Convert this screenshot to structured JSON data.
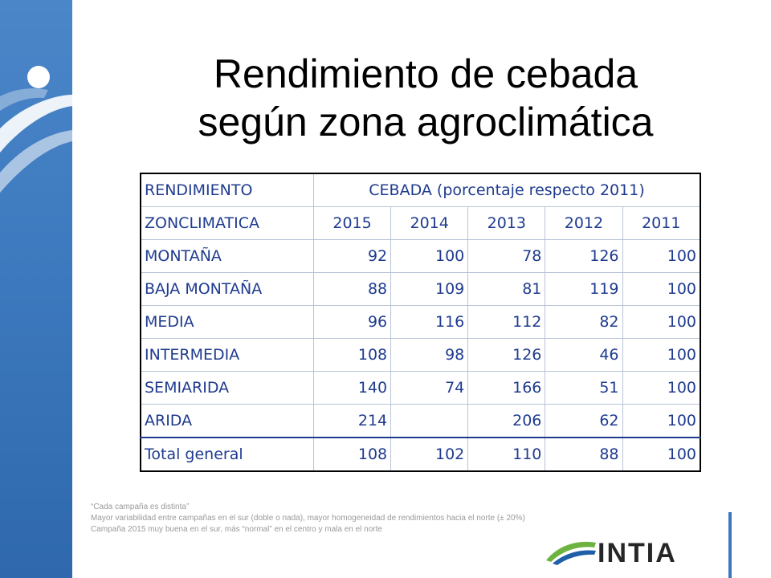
{
  "slide": {
    "title_line1": "Rendimiento de cebada",
    "title_line2": "según zona agroclimática"
  },
  "table": {
    "header1": {
      "col1": "RENDIMIENTO",
      "col2": "CEBADA (porcentaje respecto 2011)"
    },
    "header2": {
      "col1": "ZONCLIMATICA",
      "years": [
        "2015",
        "2014",
        "2013",
        "2012",
        "2011"
      ]
    },
    "rows": [
      {
        "zone": "MONTAÑA",
        "values": [
          "92",
          "100",
          "78",
          "126",
          "100"
        ]
      },
      {
        "zone": "BAJA MONTAÑA",
        "values": [
          "88",
          "109",
          "81",
          "119",
          "100"
        ]
      },
      {
        "zone": "MEDIA",
        "values": [
          "96",
          "116",
          "112",
          "82",
          "100"
        ]
      },
      {
        "zone": "INTERMEDIA",
        "values": [
          "108",
          "98",
          "126",
          "46",
          "100"
        ]
      },
      {
        "zone": "SEMIARIDA",
        "values": [
          "140",
          "74",
          "166",
          "51",
          "100"
        ]
      },
      {
        "zone": "ARIDA",
        "values": [
          "214",
          "",
          "206",
          "62",
          "100"
        ]
      }
    ],
    "total": {
      "zone": "Total general",
      "values": [
        "108",
        "102",
        "110",
        "88",
        "100"
      ]
    }
  },
  "notes": [
    "“Cada campaña es distinta”",
    "Mayor variabilidad entre campañas en el sur (doble o nada), mayor homogeneidad de rendimientos hacia el norte (± 20%)",
    "Campaña 2015 muy buena en el sur, más “normal” en el centro y mala en el norte"
  ],
  "logo": {
    "text": "INTIA",
    "colors": {
      "green": "#6cb33f",
      "blue": "#1f5fa8"
    }
  },
  "colors": {
    "sidebar": "#3c78bd",
    "table_text": "#1f3b8f"
  }
}
